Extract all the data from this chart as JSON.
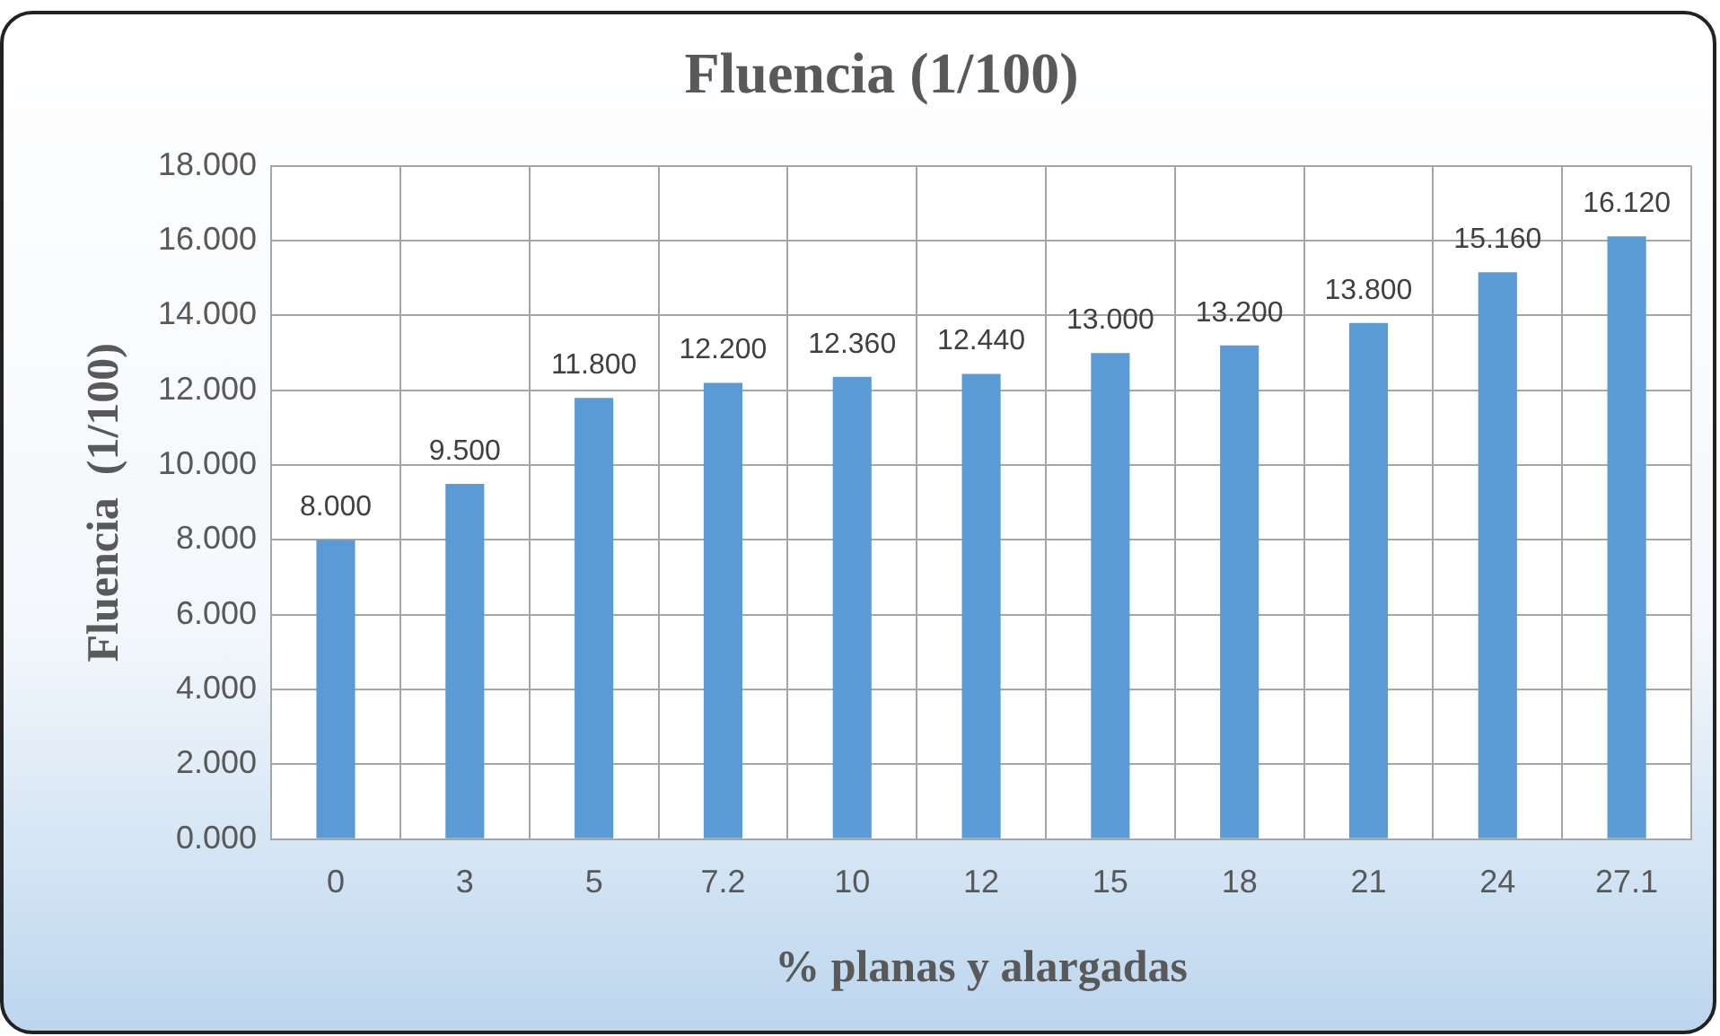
{
  "chart_data": {
    "type": "bar",
    "title": "Fluencia (1/100)",
    "xlabel": "% planas y alargadas",
    "ylabel": "Fluencia  (1/100)",
    "categories": [
      "0",
      "3",
      "5",
      "7.2",
      "10",
      "12",
      "15",
      "18",
      "21",
      "24",
      "27.1"
    ],
    "values": [
      8,
      9.5,
      11.8,
      12.2,
      12.36,
      12.44,
      13,
      13.2,
      13.8,
      15.16,
      16.12
    ],
    "value_labels": [
      "8.000",
      "9.500",
      "11.800",
      "12.200",
      "12.360",
      "12.440",
      "13.000",
      "13.200",
      "13.800",
      "15.160",
      "16.120"
    ],
    "color": "#5b9bd5",
    "ylim": [
      0,
      18
    ],
    "yticks": [
      {
        "value": 0,
        "label": "0.000"
      },
      {
        "value": 2,
        "label": "2.000"
      },
      {
        "value": 4,
        "label": "4.000"
      },
      {
        "value": 6,
        "label": "6.000"
      },
      {
        "value": 8,
        "label": "8.000"
      },
      {
        "value": 10,
        "label": "10.000"
      },
      {
        "value": 12,
        "label": "12.000"
      },
      {
        "value": 14,
        "label": "14.000"
      },
      {
        "value": 16,
        "label": "16.000"
      },
      {
        "value": 18,
        "label": "18.000"
      }
    ],
    "grid": true
  }
}
